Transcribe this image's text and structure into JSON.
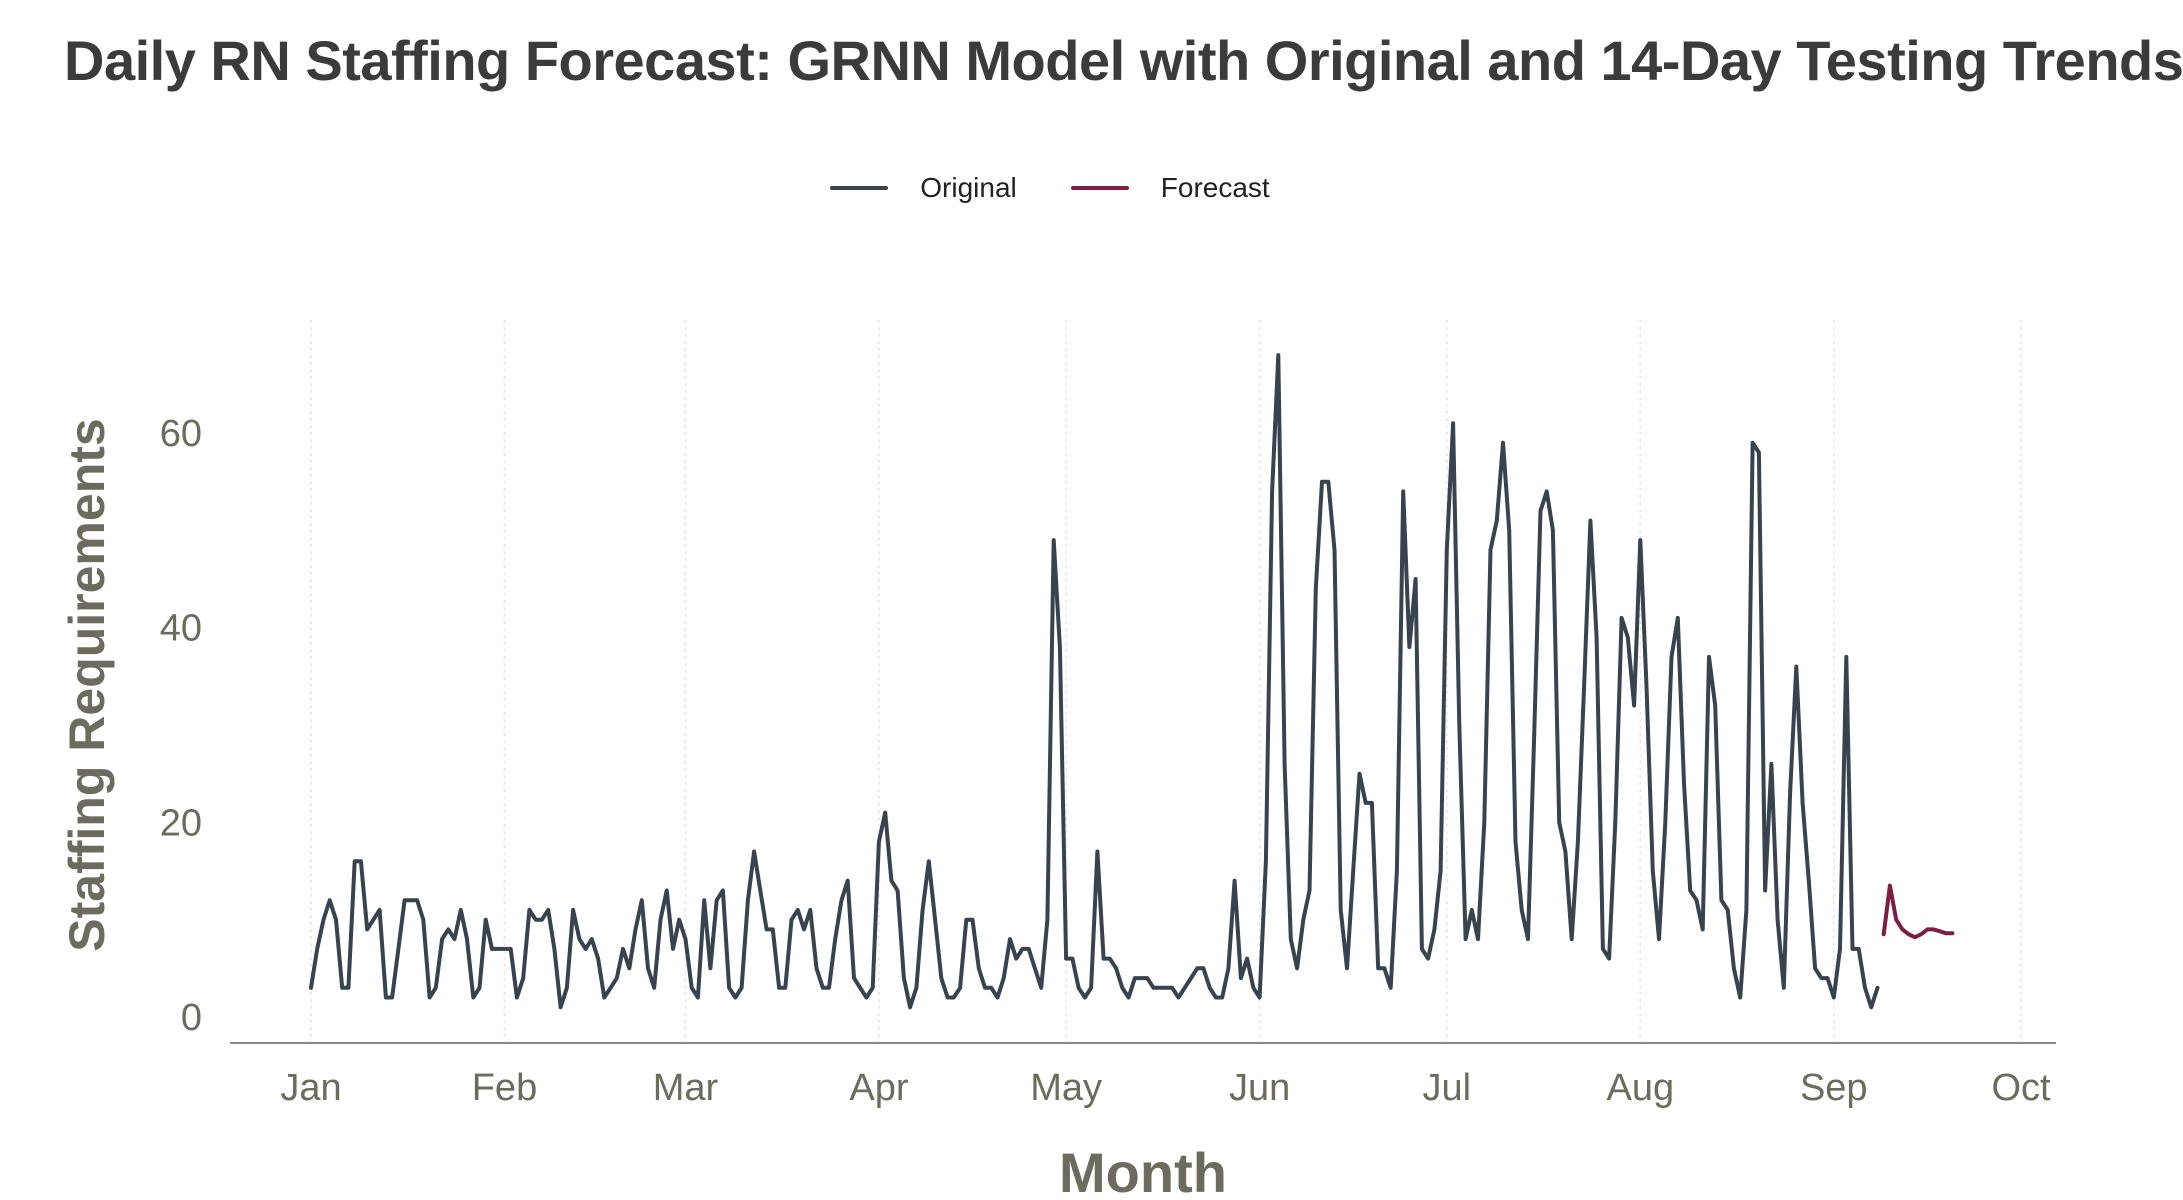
{
  "title": "Daily RN Staffing Forecast: GRNN Model with Original and 14-Day Testing Trends",
  "colors": {
    "original": "#37434f",
    "forecast": "#7b1f45",
    "axis_text": "#6d6a5e"
  },
  "legend": {
    "original": "Original",
    "forecast": "Forecast"
  },
  "chart_data": {
    "type": "line",
    "title": "Daily RN Staffing Forecast: GRNN Model with Original and 14-Day Testing Trends",
    "xlabel": "Month",
    "ylabel": "Staffing Requirements",
    "xlim": [
      "2024-01-01",
      "2024-10-01"
    ],
    "ylim": [
      -3,
      68
    ],
    "yticks": [
      0,
      20,
      40,
      60
    ],
    "xticks": [
      {
        "date": "2024-01-01",
        "label": "Jan"
      },
      {
        "date": "2024-02-01",
        "label": "Feb"
      },
      {
        "date": "2024-03-01",
        "label": "Mar"
      },
      {
        "date": "2024-04-01",
        "label": "Apr"
      },
      {
        "date": "2024-05-01",
        "label": "May"
      },
      {
        "date": "2024-06-01",
        "label": "Jun"
      },
      {
        "date": "2024-07-01",
        "label": "Jul"
      },
      {
        "date": "2024-08-01",
        "label": "Aug"
      },
      {
        "date": "2024-09-01",
        "label": "Sep"
      },
      {
        "date": "2024-10-01",
        "label": "Oct"
      }
    ],
    "grid": "vertical",
    "legend_position": "top",
    "series": [
      {
        "name": "Original",
        "start": "2024-01-01",
        "values": [
          3,
          7,
          10,
          12,
          10,
          3,
          3,
          16,
          16,
          9,
          10,
          11,
          2,
          2,
          7,
          12,
          12,
          12,
          10,
          2,
          3,
          8,
          9,
          8,
          11,
          8,
          2,
          3,
          10,
          7,
          7,
          7,
          7,
          2,
          4,
          11,
          10,
          10,
          11,
          7,
          1,
          3,
          11,
          8,
          7,
          8,
          6,
          2,
          3,
          4,
          7,
          5,
          9,
          12,
          5,
          3,
          10,
          13,
          7,
          10,
          8,
          3,
          2,
          12,
          5,
          12,
          13,
          3,
          2,
          3,
          12,
          17,
          13,
          9,
          9,
          3,
          3,
          10,
          11,
          9,
          11,
          5,
          3,
          3,
          8,
          12,
          14,
          4,
          3,
          2,
          3,
          18,
          21,
          14,
          13,
          4,
          1,
          3,
          11,
          16,
          10,
          4,
          2,
          2,
          3,
          10,
          10,
          5,
          3,
          3,
          2,
          4,
          8,
          6,
          7,
          7,
          5,
          3,
          10,
          49,
          38,
          6,
          6,
          3,
          2,
          3,
          17,
          6,
          6,
          5,
          3,
          2,
          4,
          4,
          4,
          3,
          3,
          3,
          3,
          2,
          3,
          4,
          5,
          5,
          3,
          2,
          2,
          5,
          14,
          4,
          6,
          3,
          2,
          16,
          54,
          68,
          26,
          8,
          5,
          10,
          13,
          44,
          55,
          55,
          48,
          11,
          5,
          15,
          25,
          22,
          22,
          5,
          5,
          3,
          15,
          54,
          38,
          45,
          7,
          6,
          9,
          15,
          48,
          61,
          30,
          8,
          11,
          8,
          20,
          48,
          51,
          59,
          50,
          18,
          11,
          8,
          29,
          52,
          54,
          50,
          20,
          17,
          8,
          18,
          34,
          51,
          39,
          7,
          6,
          20,
          41,
          39,
          32,
          49,
          34,
          15,
          8,
          20,
          37,
          41,
          24,
          13,
          12,
          9,
          37,
          32,
          12,
          11,
          5,
          2,
          11,
          59,
          58,
          13,
          26,
          10,
          3,
          23,
          36,
          22,
          14,
          5,
          4,
          4,
          2,
          7,
          37,
          7,
          7,
          3,
          1,
          3
        ],
        "color": "#37434f"
      },
      {
        "name": "Forecast",
        "start": "2024-09-09",
        "values": [
          8.5,
          13.5,
          10,
          9,
          8.5,
          8.2,
          8.5,
          9,
          9,
          8.8,
          8.6,
          8.6
        ],
        "color": "#7b1f45"
      }
    ]
  }
}
